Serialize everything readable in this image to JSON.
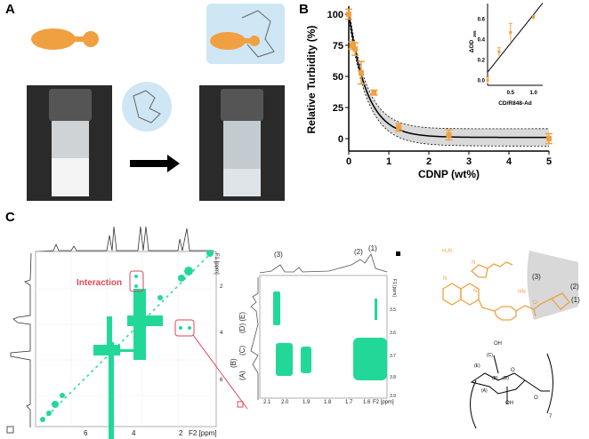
{
  "panels": {
    "a": "A",
    "b": "B",
    "c": "C"
  },
  "colors": {
    "orange": "#f0a040",
    "nmr_green": "#22d899",
    "highlight_red": "#d84a5a",
    "cd_blue": "#cfe6f5",
    "band_gray": "#d9d9d9"
  },
  "chart_data": [
    {
      "type": "scatter",
      "xlabel": "CDNP (wt%)",
      "ylabel": "Relative Turbidity (%)",
      "xlim": [
        0,
        5
      ],
      "ylim": [
        -10,
        105
      ],
      "xticks": [
        "0",
        "1",
        "2",
        "3",
        "4",
        "5"
      ],
      "yticks": [
        "0",
        "25",
        "50",
        "75",
        "100"
      ],
      "x": [
        0,
        0.08,
        0.16,
        0.31,
        0.63,
        1.25,
        2.5,
        5
      ],
      "y": [
        100,
        75,
        72,
        53,
        37,
        9,
        3,
        0
      ],
      "err": [
        4,
        3,
        5,
        9,
        2,
        3,
        4,
        4
      ],
      "fit": "exponential decay with confidence band",
      "grid": false
    },
    {
      "type": "scatter",
      "xlabel": "CD/R848-Ad",
      "ylabel": "ΔOD",
      "ylabel_sub": "365",
      "xlim": [
        0,
        1.2
      ],
      "ylim": [
        -0.05,
        0.72
      ],
      "xticks": [
        "0.5",
        "1.0"
      ],
      "yticks": [
        "0.0",
        "0.2",
        "0.4",
        "0.6"
      ],
      "x": [
        0,
        0.25,
        0.5,
        1.0
      ],
      "y": [
        0.0,
        0.28,
        0.47,
        0.62
      ],
      "err": [
        0.03,
        0.04,
        0.09,
        0.02
      ],
      "fit_line": {
        "x": [
          0,
          1.2
        ],
        "y": [
          0.08,
          0.76
        ]
      },
      "grid": false
    }
  ],
  "nmr_full": {
    "interaction_label": "Interaction",
    "x_ticks": [
      "6",
      "4",
      "2"
    ],
    "x_axis_label": "F2 [ppm]",
    "y_ticks": [
      "2",
      "4",
      "6"
    ],
    "y_axis_label": "F1 [ppm]"
  },
  "nmr_zoom": {
    "peak_labels": [
      "(3)",
      "(2)",
      "(1)"
    ],
    "side_labels": [
      "(D) (E)",
      "(C)",
      "(B)",
      "(A)"
    ],
    "x_ticks": [
      "2.1",
      "2.0",
      "1.9",
      "1.8",
      "1.7",
      "1.6"
    ],
    "x_axis_label": "F2 [ppm]",
    "y_ticks": [
      "3.5",
      "3.6",
      "3.7",
      "3.8",
      "3.9"
    ],
    "y_axis_label": "F1 [ppm]"
  },
  "structures": {
    "r848": {
      "nh2": "H₂N",
      "n1": "N",
      "n2": "N",
      "n3": "N",
      "nh": "HN",
      "o": "O",
      "labels": [
        "(3)",
        "(2)",
        "(1)"
      ]
    },
    "cd": {
      "oh_top": "OH",
      "oh_bottom": "OH",
      "o_ring": "O",
      "o_link": "O",
      "repeat": "7",
      "labels": [
        "(C)",
        "(E)",
        "(B)",
        "(D)",
        "(A)"
      ]
    }
  }
}
